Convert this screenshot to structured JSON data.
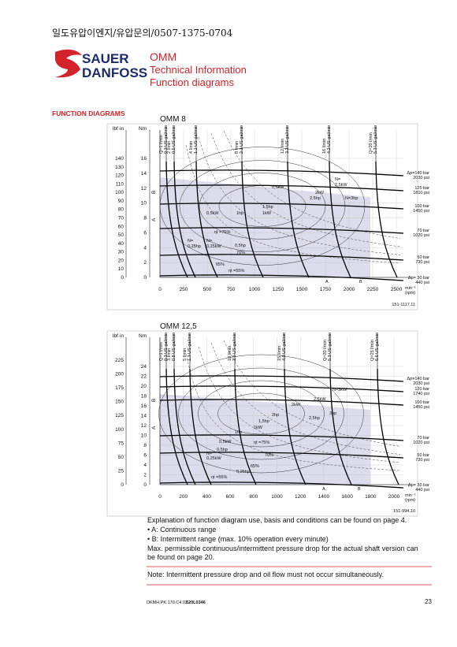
{
  "header": {
    "note": "일도유압이엔지/유압문의/0507-1375-0704"
  },
  "brand": {
    "line1": "SAUER",
    "line2": "DANFOSS"
  },
  "doc": {
    "product": "OMM",
    "subtitle1": "Technical Information",
    "subtitle2": "Function diagrams"
  },
  "section_title": "FUNCTION DIAGRAMS",
  "diagrams": [
    {
      "title": "OMM 8",
      "left_unit": "lbf·in",
      "right_unit": "Nm",
      "lbf_ticks": [
        "140",
        "130",
        "120",
        "110",
        "100",
        "90",
        "80",
        "70",
        "60",
        "50",
        "40",
        "30",
        "20",
        "10",
        "0"
      ],
      "nm_ticks": [
        "16",
        "14",
        "12",
        "10",
        "8",
        "6",
        "4",
        "2",
        "0"
      ],
      "x_ticks": [
        "0",
        "250",
        "500",
        "750",
        "1000",
        "1250",
        "1500",
        "1750",
        "2000",
        "2250",
        "2500"
      ],
      "x_unit": [
        "min⁻¹",
        "(rpm)"
      ],
      "range_marks": [
        "B",
        "A"
      ],
      "flow_labels": [
        [
          "Q=1 l/min",
          "0.3 US gal/min"
        ],
        [
          "2 l/min",
          "0.5 US gal/min"
        ],
        [
          "4 l/min",
          "1.1 US gal/min"
        ],
        [
          "8 l/min",
          "2.1 US gal/min"
        ],
        [
          "12 l/min",
          "3.2 US gal/min"
        ],
        [
          "16 l/min",
          "4.2 US gal/min"
        ],
        [
          "Q=20 l/min",
          "5.3 US gal/min"
        ]
      ],
      "pressure_labels": [
        [
          "Δp=140 bar",
          "2030 psi"
        ],
        [
          "125 bar",
          "1810 psi"
        ],
        [
          "100 bar",
          "1450 psi"
        ],
        [
          "70 bar",
          "1020 psi"
        ],
        [
          "50 bar",
          "730 psi"
        ],
        [
          "Δp= 30 bar",
          "440 psi"
        ]
      ],
      "curve_labels": [
        "N=",
        "2,5kW",
        "2kW",
        "1,5kW",
        "2,5hp",
        "N=3hp",
        "1,5hp",
        "0,5kW",
        "1hp",
        "1kW",
        "ηt =75%",
        "N=",
        "0,25hp",
        "N=",
        "0,25kW",
        "0,5hp",
        "70%",
        "65%",
        "ηt =55%",
        "A",
        "B"
      ],
      "ref": "151-1117.11"
    },
    {
      "title": "OMM 12,5",
      "left_unit": "lbf·in",
      "right_unit": "Nm",
      "lbf_ticks": [
        "225",
        "200",
        "175",
        "150",
        "125",
        "100",
        "75",
        "50",
        "25",
        "0"
      ],
      "nm_ticks": [
        "24",
        "22",
        "20",
        "18",
        "16",
        "14",
        "12",
        "10",
        "8",
        "6",
        "4",
        "2",
        "0"
      ],
      "x_ticks": [
        "0",
        "200",
        "400",
        "600",
        "800",
        "1000",
        "1200",
        "1400",
        "1600",
        "1800",
        "2000"
      ],
      "x_unit": [
        "min⁻¹",
        "(rpm)"
      ],
      "range_marks": [
        "B",
        "A"
      ],
      "flow_labels": [
        [
          "Q=1 l/min",
          "0.3 US gal/min"
        ],
        [
          "3 l/min",
          "0.8 US gal/min"
        ],
        [
          "5 l/min",
          "1.3 US gal/min"
        ],
        [
          "10 l/min",
          "2.6 US gal/min"
        ],
        [
          "15 l/min",
          "4.0 US gal/min"
        ],
        [
          "Q=20 l/min",
          "5.3 US gal/min"
        ],
        [
          "Q=25 l/min",
          "6.6 US gal/min"
        ]
      ],
      "pressure_labels": [
        [
          "Δp=140 bar",
          "2030 psi"
        ],
        [
          "120 bar",
          "1740 psi"
        ],
        [
          "100 bar",
          "1450 psi"
        ],
        [
          "70 bar",
          "1020 psi"
        ],
        [
          "50 bar",
          "730 psi"
        ],
        [
          "Δp= 30 bar",
          "440 psi"
        ]
      ],
      "curve_labels": [
        "N=3kW",
        "2,5kW",
        "2kW",
        "3hp",
        "2,5hp",
        "2hp",
        "1,5hp",
        "1kW",
        "1hp",
        "ηt =75%",
        "0,5kW",
        "0,5hp",
        "N=",
        "0,25kW",
        "70%",
        "65%",
        "0,25hp",
        "ηt =55%",
        "A",
        "B"
      ],
      "ref": "151-994.10"
    }
  ],
  "explanation": {
    "lines": [
      "Explanation of function diagram use, basis and conditions can be found on page 4.",
      "•  A: Continuous range",
      "•  B: Intermittent range (max. 10% operation every minute)",
      "Max. permissible continuous/intermittent pressure drop for the actual shaft version can",
      "be found on page 20."
    ],
    "note": "Note: Intermittent pressure drop and oil flow must not occur simultaneously."
  },
  "footer": {
    "doc_no": "DKMH.PK.170.C4.02",
    "code": "520L0346",
    "page": "23"
  }
}
